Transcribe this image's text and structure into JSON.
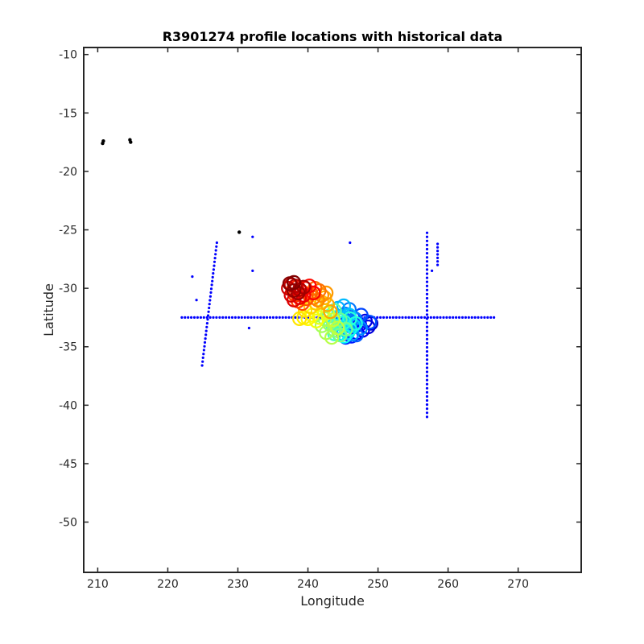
{
  "chart_data": {
    "type": "scatter",
    "title": "R3901274 profile locations with historical data",
    "xlabel": "Longitude",
    "ylabel": "Latitude",
    "xlim": [
      208,
      279
    ],
    "ylim": [
      -54.3,
      -9.4
    ],
    "xticks": [
      210,
      220,
      230,
      240,
      250,
      260,
      270
    ],
    "yticks": [
      -10,
      -15,
      -20,
      -25,
      -30,
      -35,
      -40,
      -45,
      -50
    ],
    "grid": false,
    "legend": "none",
    "colors": {
      "historical": "#0000ff",
      "black": "#000000",
      "profile_colormap": "jet"
    },
    "black_points": [
      {
        "x": 210.7,
        "y": -17.6
      },
      {
        "x": 210.8,
        "y": -17.4
      },
      {
        "x": 214.6,
        "y": -17.3
      },
      {
        "x": 214.7,
        "y": -17.5
      },
      {
        "x": 230.2,
        "y": -25.2
      }
    ],
    "historical_line_horizontal": {
      "x_start": 222.0,
      "x_end": 266.8,
      "y": -32.5,
      "step": 0.45
    },
    "historical_line_vertical_1": {
      "x": 257.0,
      "y_start": -41.0,
      "y_end": -25.0,
      "step": 0.35
    },
    "historical_line_vertical_2": {
      "x": 258.5,
      "y_start": -28.0,
      "y_end": -26.0,
      "step": 0.3
    },
    "historical_line_diagonal": {
      "x_start": 224.9,
      "y_start": -36.6,
      "x_end": 227.0,
      "y_end": -26.1,
      "steps": 32
    },
    "historical_isolated": [
      {
        "x": 223.5,
        "y": -29.0
      },
      {
        "x": 224.1,
        "y": -31.0
      },
      {
        "x": 232.1,
        "y": -25.6
      },
      {
        "x": 232.1,
        "y": -28.5
      },
      {
        "x": 231.6,
        "y": -33.4
      },
      {
        "x": 246.0,
        "y": -26.1
      },
      {
        "x": 257.7,
        "y": -28.5
      }
    ],
    "profiles": [
      {
        "x": 249.0,
        "y": -33.0
      },
      {
        "x": 248.6,
        "y": -33.3
      },
      {
        "x": 248.2,
        "y": -32.8
      },
      {
        "x": 247.8,
        "y": -33.6
      },
      {
        "x": 247.4,
        "y": -33.1
      },
      {
        "x": 247.0,
        "y": -33.8
      },
      {
        "x": 246.6,
        "y": -33.3
      },
      {
        "x": 246.2,
        "y": -34.1
      },
      {
        "x": 245.8,
        "y": -33.6
      },
      {
        "x": 245.4,
        "y": -34.2
      },
      {
        "x": 245.0,
        "y": -33.9
      },
      {
        "x": 246.4,
        "y": -32.5
      },
      {
        "x": 247.6,
        "y": -32.3
      },
      {
        "x": 248.8,
        "y": -32.9
      },
      {
        "x": 246.9,
        "y": -34.0
      },
      {
        "x": 245.9,
        "y": -32.8
      },
      {
        "x": 245.3,
        "y": -32.2
      },
      {
        "x": 245.9,
        "y": -31.8
      },
      {
        "x": 246.7,
        "y": -32.6
      },
      {
        "x": 247.5,
        "y": -33.4
      },
      {
        "x": 246.3,
        "y": -33.9
      },
      {
        "x": 245.5,
        "y": -33.2
      },
      {
        "x": 244.7,
        "y": -32.4
      },
      {
        "x": 244.3,
        "y": -31.7
      },
      {
        "x": 245.1,
        "y": -31.5
      },
      {
        "x": 245.9,
        "y": -32.3
      },
      {
        "x": 246.5,
        "y": -33.2
      },
      {
        "x": 245.7,
        "y": -33.8
      },
      {
        "x": 244.9,
        "y": -33.0
      },
      {
        "x": 244.1,
        "y": -32.5
      },
      {
        "x": 243.6,
        "y": -33.2
      },
      {
        "x": 244.4,
        "y": -33.9
      },
      {
        "x": 245.2,
        "y": -34.1
      },
      {
        "x": 246.0,
        "y": -33.5
      },
      {
        "x": 246.8,
        "y": -33.0
      },
      {
        "x": 246.0,
        "y": -32.6
      },
      {
        "x": 245.2,
        "y": -32.9
      },
      {
        "x": 244.4,
        "y": -33.4
      },
      {
        "x": 243.8,
        "y": -33.9
      },
      {
        "x": 243.2,
        "y": -33.1
      },
      {
        "x": 243.0,
        "y": -32.4
      },
      {
        "x": 243.8,
        "y": -31.9
      },
      {
        "x": 244.6,
        "y": -32.7
      },
      {
        "x": 245.4,
        "y": -33.5
      },
      {
        "x": 244.6,
        "y": -34.0
      },
      {
        "x": 243.8,
        "y": -33.6
      },
      {
        "x": 243.0,
        "y": -33.0
      },
      {
        "x": 242.4,
        "y": -32.6
      },
      {
        "x": 242.0,
        "y": -33.2
      },
      {
        "x": 242.6,
        "y": -33.8
      },
      {
        "x": 243.4,
        "y": -34.2
      },
      {
        "x": 244.2,
        "y": -33.4
      },
      {
        "x": 243.6,
        "y": -32.7
      },
      {
        "x": 242.8,
        "y": -32.1
      },
      {
        "x": 242.2,
        "y": -31.9
      },
      {
        "x": 241.6,
        "y": -32.5
      },
      {
        "x": 241.2,
        "y": -32.8
      },
      {
        "x": 240.6,
        "y": -32.3
      },
      {
        "x": 240.0,
        "y": -32.6
      },
      {
        "x": 239.4,
        "y": -32.5
      },
      {
        "x": 238.8,
        "y": -32.6
      },
      {
        "x": 239.6,
        "y": -31.9
      },
      {
        "x": 240.4,
        "y": -31.6
      },
      {
        "x": 241.2,
        "y": -31.3
      },
      {
        "x": 242.0,
        "y": -31.2
      },
      {
        "x": 242.4,
        "y": -30.8
      },
      {
        "x": 242.8,
        "y": -31.4
      },
      {
        "x": 243.2,
        "y": -32.0
      },
      {
        "x": 242.6,
        "y": -30.4
      },
      {
        "x": 242.0,
        "y": -30.6
      },
      {
        "x": 241.4,
        "y": -31.0
      },
      {
        "x": 240.8,
        "y": -30.8
      },
      {
        "x": 241.6,
        "y": -30.2
      },
      {
        "x": 241.0,
        "y": -30.0
      },
      {
        "x": 240.4,
        "y": -30.4
      },
      {
        "x": 239.8,
        "y": -30.9
      },
      {
        "x": 239.2,
        "y": -31.3
      },
      {
        "x": 238.6,
        "y": -31.1
      },
      {
        "x": 238.2,
        "y": -30.6
      },
      {
        "x": 237.8,
        "y": -30.2
      },
      {
        "x": 238.4,
        "y": -29.9
      },
      {
        "x": 239.0,
        "y": -30.2
      },
      {
        "x": 239.6,
        "y": -30.0
      },
      {
        "x": 240.2,
        "y": -29.8
      },
      {
        "x": 240.8,
        "y": -30.4
      },
      {
        "x": 239.4,
        "y": -30.6
      },
      {
        "x": 238.8,
        "y": -30.8
      },
      {
        "x": 238.0,
        "y": -31.0
      },
      {
        "x": 237.6,
        "y": -30.6
      },
      {
        "x": 237.2,
        "y": -30.0
      },
      {
        "x": 237.6,
        "y": -29.7
      },
      {
        "x": 238.2,
        "y": -29.8
      },
      {
        "x": 238.8,
        "y": -30.1
      },
      {
        "x": 239.4,
        "y": -29.9
      },
      {
        "x": 238.6,
        "y": -30.4
      },
      {
        "x": 238.0,
        "y": -30.2
      },
      {
        "x": 237.4,
        "y": -29.6
      },
      {
        "x": 238.0,
        "y": -29.5
      }
    ]
  }
}
